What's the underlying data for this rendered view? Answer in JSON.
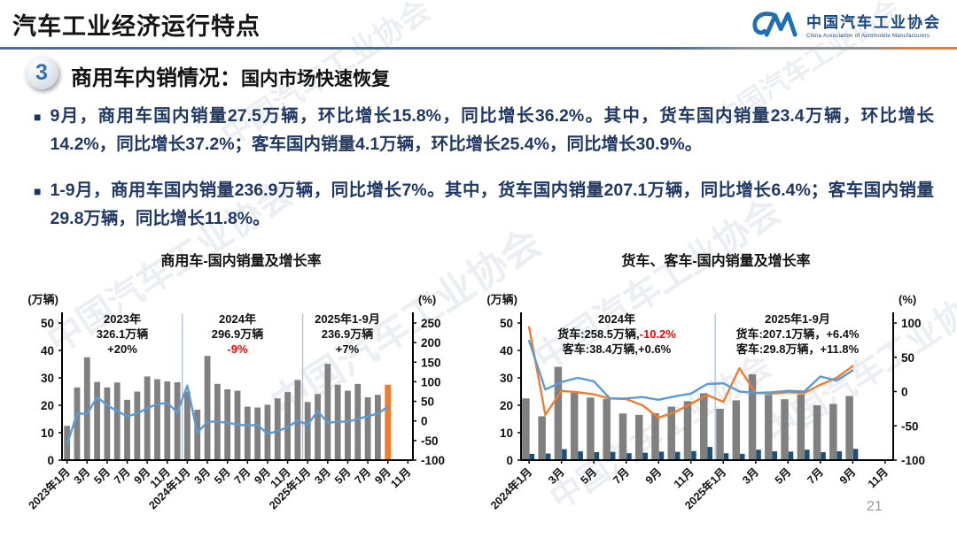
{
  "header": {
    "title": "汽车工业经济运行特点",
    "logo_cn": "中国汽车工业协会",
    "logo_en": "China Association of Automobile Manufacturers"
  },
  "section": {
    "number": "3",
    "title": "商用车内销情况：",
    "subtitle": "国内市场快速恢复"
  },
  "bullets": [
    "9月，商用车国内销量27.5万辆，环比增长15.8%，同比增长36.2%。其中，货车国内销量23.4万辆，环比增长14.2%，同比增长37.2%；客车国内销量4.1万辆，环比增长25.4%，同比增长30.9%。",
    "1-9月，商用车国内销量236.9万辆，同比增长7%。其中，货车国内销量207.1万辆，同比增长6.4%；客车国内销量29.8万辆，同比增长11.8%。"
  ],
  "page_number": "21",
  "watermark": "中国汽车工业协会",
  "chart_data": [
    {
      "id": "commercial-vehicle-domestic-sales",
      "type": "bar+line",
      "title": "商用车-国内销量及增长率",
      "left_axis_label": "(万辆)",
      "right_axis_label": "(%)",
      "left_ylim": [
        0,
        50
      ],
      "left_yticks": [
        0,
        10,
        20,
        30,
        40,
        50
      ],
      "right_ylim": [
        -100,
        250
      ],
      "right_yticks": [
        -100,
        -50,
        0,
        50,
        100,
        150,
        200,
        250
      ],
      "categories": [
        "2023年1月",
        "2023年2月",
        "2023年3月",
        "2023年4月",
        "2023年5月",
        "2023年6月",
        "2023年7月",
        "2023年8月",
        "2023年9月",
        "2023年10月",
        "2023年11月",
        "2023年12月",
        "2024年1月",
        "2024年2月",
        "2024年3月",
        "2024年4月",
        "2024年5月",
        "2024年6月",
        "2024年7月",
        "2024年8月",
        "2024年9月",
        "2024年10月",
        "2024年11月",
        "2024年12月",
        "2025年1月",
        "2025年2月",
        "2025年3月",
        "2025年4月",
        "2025年5月",
        "2025年6月",
        "2025年7月",
        "2025年8月",
        "2025年9月"
      ],
      "x_tick_labels": [
        "2023年1月",
        "3月",
        "5月",
        "7月",
        "9月",
        "11月",
        "2024年1月",
        "3月",
        "5月",
        "7月",
        "9月",
        "11月",
        "2025年1月",
        "3月",
        "5月",
        "7月",
        "9月",
        "11月"
      ],
      "separators": [
        "2024年1月",
        "2025年1月"
      ],
      "bar_series": [
        {
          "name": "商用车国内销量(万辆)",
          "color": "#808080",
          "colors_override": {
            "32": "#ED7D31"
          },
          "values": [
            12.5,
            26.5,
            37.5,
            28.5,
            26.5,
            28.3,
            22.0,
            25.0,
            30.5,
            29.5,
            28.7,
            28.4,
            25.0,
            18.4,
            38.0,
            27.8,
            25.8,
            25.3,
            19.5,
            19.2,
            20.2,
            22.5,
            24.8,
            29.2,
            21.2,
            24.1,
            35.1,
            27.5,
            25.3,
            27.8,
            22.9,
            23.8,
            27.5
          ]
        }
      ],
      "line_series": [
        {
          "name": "同比增长率(%)",
          "color": "#5B9BD5",
          "values": [
            -60,
            19,
            18,
            61,
            40,
            25,
            12,
            19,
            33,
            43,
            46,
            22,
            90,
            -30,
            -2,
            -2,
            -5,
            -9,
            -12,
            -10,
            -33,
            -26,
            -16,
            1,
            -10,
            25,
            -5,
            -2,
            -2,
            5,
            12,
            19,
            36.2
          ]
        }
      ],
      "annotations": [
        {
          "lines": [
            [
              {
                "t": "2023年"
              }
            ],
            [
              {
                "t": "326.1万辆"
              }
            ],
            [
              {
                "t": "+20%"
              }
            ]
          ]
        },
        {
          "lines": [
            [
              {
                "t": "2024年"
              }
            ],
            [
              {
                "t": "296.9万辆"
              }
            ],
            [
              {
                "t": "-9%",
                "red": true
              }
            ]
          ]
        },
        {
          "lines": [
            [
              {
                "t": "2025年1-9月"
              }
            ],
            [
              {
                "t": "236.9万辆"
              }
            ],
            [
              {
                "t": "+7%"
              }
            ]
          ]
        }
      ]
    },
    {
      "id": "truck-bus-domestic-sales",
      "type": "bar+line",
      "title": "货车、客车-国内销量及增长率",
      "left_axis_label": "(万辆)",
      "right_axis_label": "(%)",
      "left_ylim": [
        0,
        50
      ],
      "left_yticks": [
        0,
        10,
        20,
        30,
        40,
        50
      ],
      "right_ylim": [
        -100,
        100
      ],
      "right_yticks": [
        -100,
        -50,
        0,
        50,
        100
      ],
      "categories": [
        "2024年1月",
        "2024年2月",
        "2024年3月",
        "2024年4月",
        "2024年5月",
        "2024年6月",
        "2024年7月",
        "2024年8月",
        "2024年9月",
        "2024年10月",
        "2024年11月",
        "2024年12月",
        "2025年1月",
        "2025年2月",
        "2025年3月",
        "2025年4月",
        "2025年5月",
        "2025年6月",
        "2025年7月",
        "2025年8月",
        "2025年9月"
      ],
      "x_tick_labels": [
        "2024年1月",
        "3月",
        "5月",
        "7月",
        "9月",
        "11月",
        "2025年1月",
        "3月",
        "5月",
        "7月",
        "9月",
        "11月"
      ],
      "separators": [
        "2025年1月"
      ],
      "bar_series": [
        {
          "name": "货车国内销量(万辆)",
          "color": "#808080",
          "values": [
            22.5,
            16.0,
            34.0,
            24.5,
            22.8,
            22.3,
            17.0,
            16.5,
            17.1,
            19.5,
            21.5,
            24.4,
            18.7,
            21.8,
            31.3,
            23.8,
            22.2,
            24.0,
            20.0,
            20.5,
            23.4
          ]
        },
        {
          "name": "客车国内销量(万辆)",
          "color": "#1F4E79",
          "values": [
            2.3,
            2.4,
            4.0,
            3.2,
            2.9,
            3.0,
            2.5,
            2.7,
            3.1,
            3.0,
            3.3,
            4.8,
            2.5,
            2.3,
            3.8,
            3.2,
            3.1,
            3.8,
            2.9,
            3.2,
            4.1
          ]
        }
      ],
      "line_series": [
        {
          "name": "货车同比增长率(%)",
          "color": "#ED7D31",
          "values": [
            94,
            -34,
            1,
            -1,
            -4,
            -10,
            -11,
            -20,
            -38,
            -30,
            -18,
            -5,
            -15,
            34,
            -2,
            -3,
            -1,
            -2,
            10,
            20,
            37.2
          ]
        },
        {
          "name": "客车同比增长率(%)",
          "color": "#5B9BD5",
          "values": [
            74,
            3,
            14,
            20,
            15,
            -10,
            -10,
            -8,
            -12,
            -7,
            -3,
            11,
            12,
            0,
            -2,
            -1,
            1,
            0,
            22,
            16,
            30.9
          ]
        }
      ],
      "annotations": [
        {
          "lines": [
            [
              {
                "t": "2024年"
              }
            ],
            [
              {
                "t": "货车:258.5万辆,"
              },
              {
                "t": "-10.2%",
                "red": true
              }
            ],
            [
              {
                "t": "客车:38.4万辆,+0.6%"
              }
            ]
          ]
        },
        {
          "lines": [
            [
              {
                "t": "2025年1-9月"
              }
            ],
            [
              {
                "t": "货车:207.1万辆，+6.4%"
              }
            ],
            [
              {
                "t": "客车:29.8万辆，+11.8%"
              }
            ]
          ]
        }
      ]
    }
  ]
}
